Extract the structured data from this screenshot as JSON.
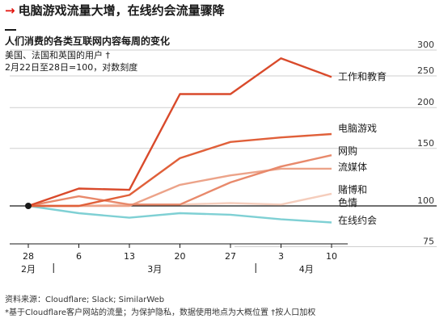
{
  "headline": {
    "arrow": "→",
    "text": "电脑游戏流量大增，在线约会流量骤降"
  },
  "header": {
    "title": "人们消费的各类互联网内容每周的变化",
    "subtitle1": "美国、法国和英国的用户 †",
    "subtitle2": "2月22日至28日=100，对数刻度"
  },
  "footer": {
    "source": "资料来源：Cloudflare; Slack; SimilarWeb",
    "note": "*基于Cloudflare客户网站的流量；为保护隐私，数据使用地点为大概位置    †按人口加权"
  },
  "colors": {
    "work": "#d94a2b",
    "games": "#e0603a",
    "shopping": "#e8896b",
    "streaming": "#eca389",
    "gambling": "#f5cdbc",
    "dating": "#7fd0d4",
    "baseline": "#1a1a1a",
    "grid": "#cfcfcf"
  },
  "chart_data": {
    "type": "line",
    "scale": "log",
    "ylim": [
      70,
      320
    ],
    "yticks": [
      "300",
      "250",
      "200",
      "150",
      "100",
      "75"
    ],
    "ytick_values": [
      300,
      250,
      200,
      150,
      100,
      75
    ],
    "x": [
      0,
      1,
      2,
      3,
      4,
      5,
      6
    ],
    "xtick_labels": [
      "28",
      "6",
      "13",
      "20",
      "27",
      "3",
      "10"
    ],
    "month_labels": [
      "2月",
      "3月",
      "4月"
    ],
    "month_positions": [
      0,
      2.5,
      5.5
    ],
    "series": [
      {
        "name": "工作和教育",
        "label_lines": [
          "工作和教育"
        ],
        "color_key": "work",
        "values": [
          100,
          113,
          112,
          220,
          220,
          283,
          248
        ]
      },
      {
        "name": "电脑游戏",
        "label_lines": [
          "电脑游戏"
        ],
        "color_key": "games",
        "values": [
          100,
          100,
          108,
          140,
          157,
          162,
          166
        ]
      },
      {
        "name": "网购",
        "label_lines": [
          "网购"
        ],
        "color_key": "shopping",
        "values": [
          100,
          107,
          101,
          101,
          118,
          132,
          143
        ]
      },
      {
        "name": "流媒体",
        "label_lines": [
          "流媒体"
        ],
        "color_key": "streaming",
        "values": [
          100,
          100,
          100,
          116,
          124,
          130,
          130
        ]
      },
      {
        "name": "赌博和色情",
        "label_lines": [
          "赌博和",
          "色情"
        ],
        "color_key": "gambling",
        "values": [
          100,
          100,
          101,
          101,
          102,
          101,
          109
        ]
      },
      {
        "name": "在线约会",
        "label_lines": [
          "在线约会"
        ],
        "color_key": "dating",
        "values": [
          100,
          95,
          92,
          95,
          94,
          91,
          89
        ]
      }
    ]
  }
}
